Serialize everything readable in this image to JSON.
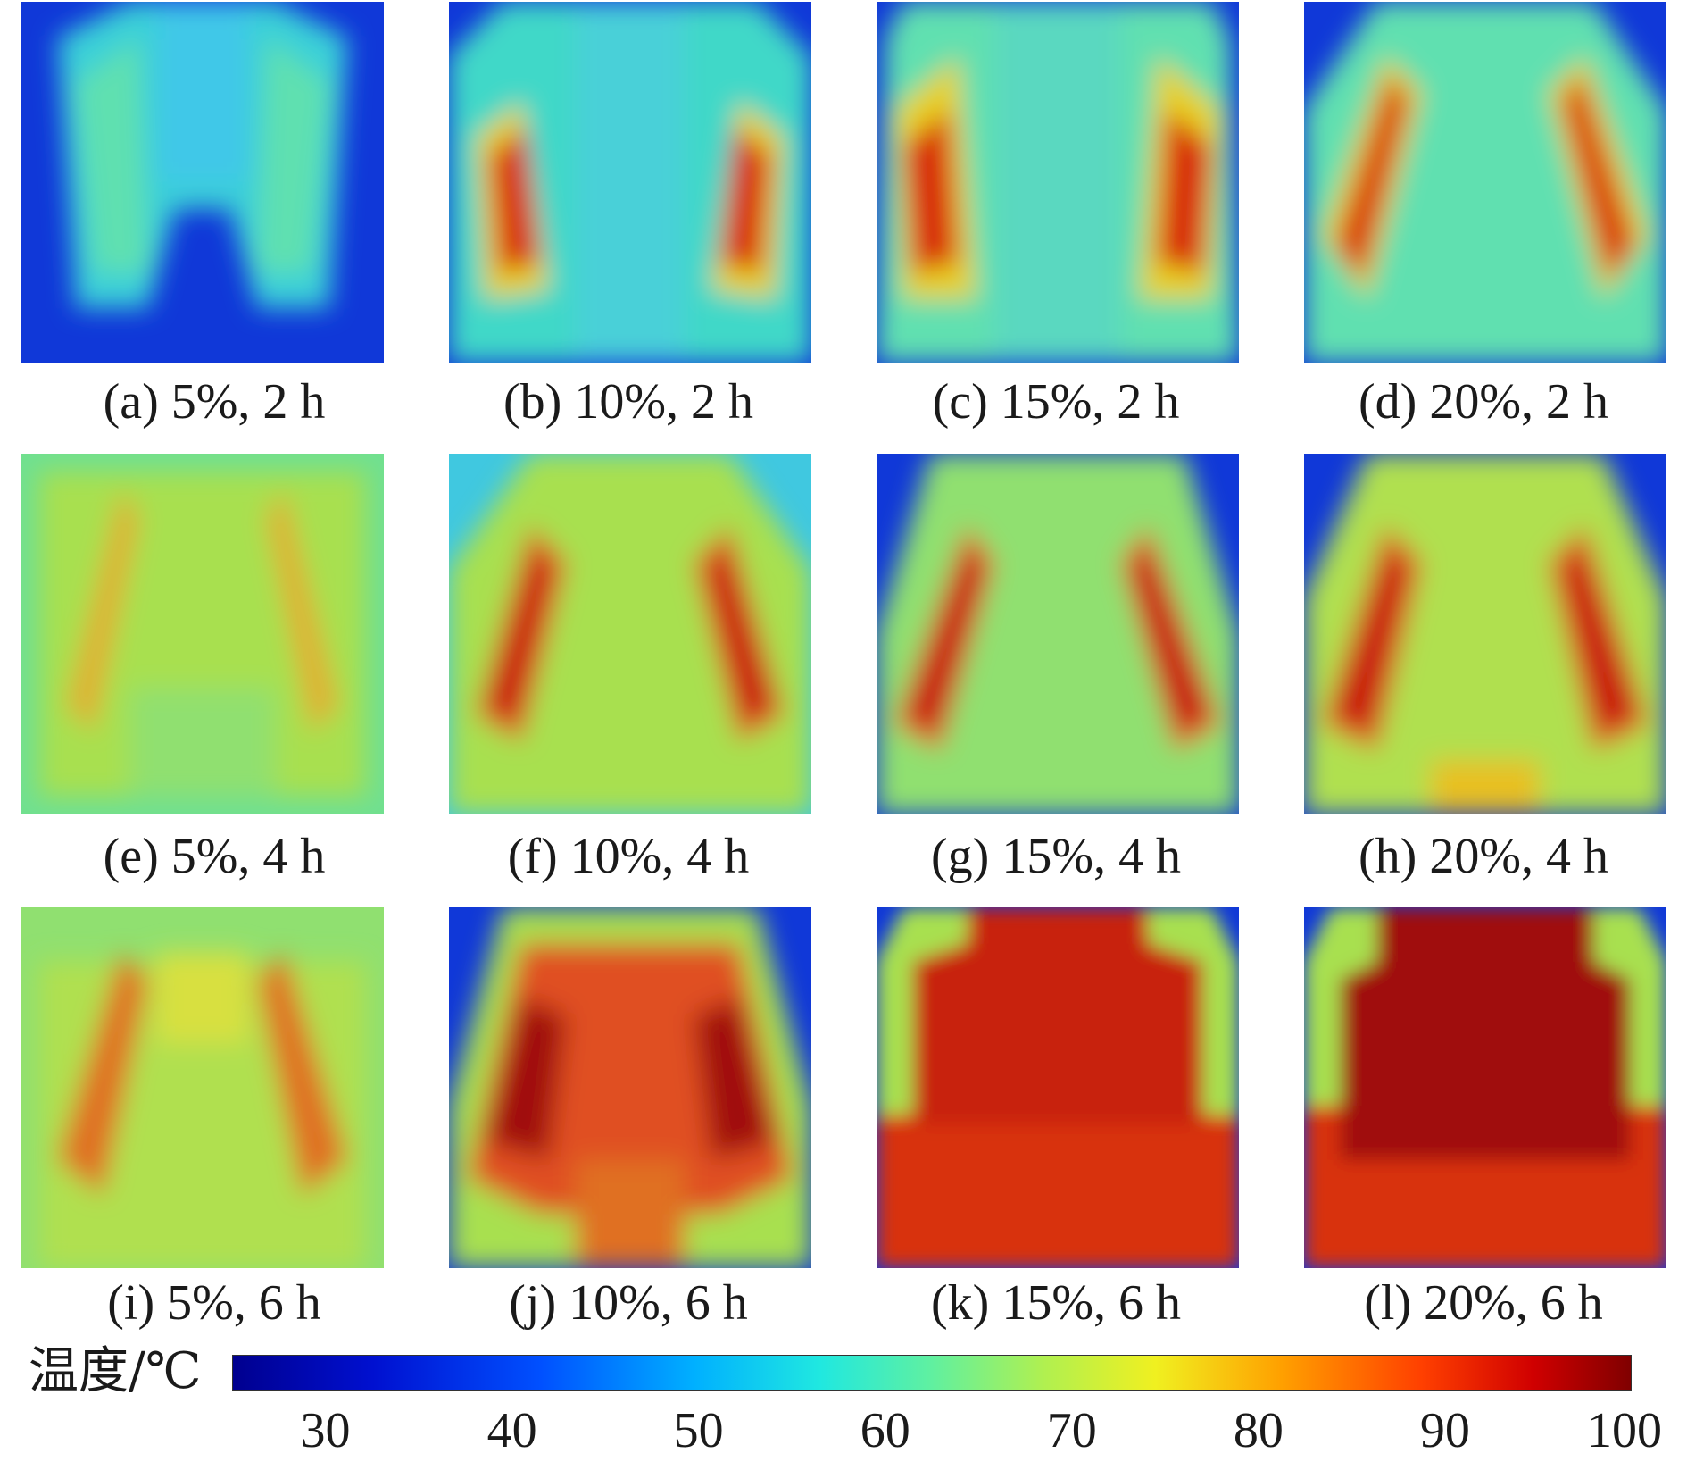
{
  "panels": [
    {
      "caption": "(a) 5%, 2 h"
    },
    {
      "caption": "(b) 10%, 2 h"
    },
    {
      "caption": "(c) 15%, 2 h"
    },
    {
      "caption": "(d) 20%, 2 h"
    },
    {
      "caption": "(e) 5%, 4 h"
    },
    {
      "caption": "(f) 10%, 4 h"
    },
    {
      "caption": "(g) 15%, 4 h"
    },
    {
      "caption": "(h) 20%, 4 h"
    },
    {
      "caption": "(i) 5%, 6 h"
    },
    {
      "caption": "(j) 10%, 6 h"
    },
    {
      "caption": "(k) 15%, 6 h"
    },
    {
      "caption": "(l) 20%, 6 h"
    }
  ],
  "colorbar": {
    "label": "温度/℃",
    "ticks": [
      "30",
      "40",
      "50",
      "60",
      "70",
      "80",
      "90",
      "100"
    ],
    "range": [
      25,
      100
    ],
    "colormap": "jet"
  }
}
